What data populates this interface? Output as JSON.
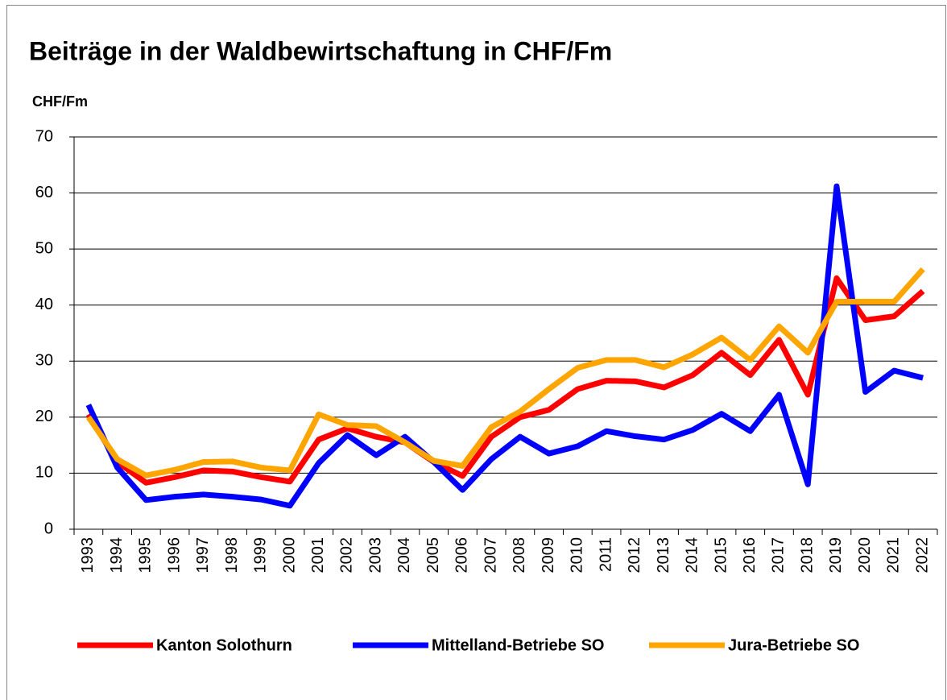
{
  "chart_data": {
    "type": "line",
    "title": "Beiträge in der Waldbewirtschaftung in CHF/Fm",
    "y_label": "CHF/Fm",
    "categories": [
      "1993",
      "1994",
      "1995",
      "1996",
      "1997",
      "1998",
      "1999",
      "2000",
      "2001",
      "2002",
      "2003",
      "2004",
      "2005",
      "2006",
      "2007",
      "2008",
      "2009",
      "2010",
      "2011",
      "2012",
      "2013",
      "2014",
      "2015",
      "2016",
      "2017",
      "2018",
      "2019",
      "2020",
      "2021",
      "2022"
    ],
    "series": [
      {
        "name": "Kanton Solothurn",
        "color": "#ff0000",
        "values": [
          20.5,
          12,
          8.3,
          9.3,
          10.5,
          10.3,
          9.3,
          8.5,
          16,
          18,
          16.5,
          15.5,
          12,
          9.5,
          16.5,
          20,
          21.3,
          25,
          26.5,
          26.4,
          25.3,
          27.5,
          31.5,
          27.5,
          33.8,
          24,
          44.8,
          37.3,
          38,
          42.5
        ]
      },
      {
        "name": "Mittelland-Betriebe SO",
        "color": "#0000ff",
        "values": [
          22.2,
          11,
          5.2,
          5.8,
          6.2,
          5.8,
          5.3,
          4.2,
          11.8,
          16.8,
          13.2,
          16.5,
          12,
          7,
          12.5,
          16.5,
          13.5,
          14.8,
          17.5,
          16.6,
          16,
          17.7,
          20.6,
          17.5,
          24,
          8,
          61.2,
          24.5,
          28.3,
          27
        ]
      },
      {
        "name": "Jura-Betriebe SO",
        "color": "#ffa500",
        "values": [
          20,
          12.5,
          9.6,
          10.6,
          12,
          12.1,
          11,
          10.5,
          20.5,
          18.6,
          18.4,
          15.5,
          12.2,
          11.3,
          18.2,
          21,
          25,
          28.8,
          30.2,
          30.2,
          28.9,
          31.2,
          34.2,
          30.2,
          36.2,
          31.5,
          40.6,
          40.6,
          40.6,
          46.4
        ]
      }
    ],
    "ylim": [
      0,
      70
    ],
    "yticks": [
      0,
      10,
      20,
      30,
      40,
      50,
      60,
      70
    ],
    "grid": true
  }
}
